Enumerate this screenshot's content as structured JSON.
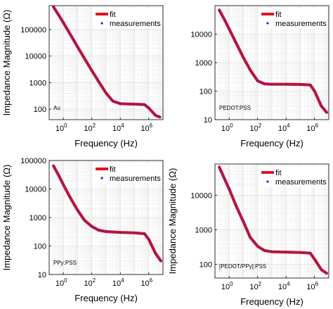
{
  "chart_data": [
    {
      "type": "line",
      "annotation": "Au",
      "xlabel": "Frequency (Hz)",
      "ylabel": "Impedance Magnitude (Ω)",
      "xscale": "log",
      "yscale": "log",
      "xlim": [
        0.1,
        10000000
      ],
      "ylim": [
        40,
        800000
      ],
      "xticks": [
        {
          "value": 1,
          "label": "10",
          "exp": "0"
        },
        {
          "value": 100,
          "label": "10",
          "exp": "2"
        },
        {
          "value": 10000,
          "label": "10",
          "exp": "4"
        },
        {
          "value": 1000000,
          "label": "10",
          "exp": "6"
        }
      ],
      "yticks": [
        {
          "value": 100,
          "label": "100"
        },
        {
          "value": 1000,
          "label": "1000"
        },
        {
          "value": 10000,
          "label": "10000"
        },
        {
          "value": 100000,
          "label": "100000"
        }
      ],
      "grid": true,
      "legend_position": "top-right",
      "series": [
        {
          "name": "fit",
          "color": "#e0141e",
          "style": "thick-line",
          "x": [
            0.2,
            0.5,
            1,
            5,
            10,
            50,
            100,
            300,
            1000,
            3000,
            10000,
            50000,
            200000,
            500000,
            1000000,
            3000000,
            6000000
          ],
          "y": [
            720000,
            330000,
            180000,
            42000,
            22000,
            5200,
            2800,
            1100,
            400,
            200,
            160,
            155,
            152,
            148,
            110,
            58,
            50
          ]
        },
        {
          "name": "measurements",
          "color": "#1a2ad1",
          "style": "dots",
          "x": [
            0.2,
            0.5,
            1,
            5,
            10,
            50,
            100,
            300,
            1000,
            3000,
            10000,
            50000,
            200000,
            500000,
            1000000,
            3000000,
            6000000
          ],
          "y": [
            720000,
            330000,
            180000,
            42000,
            22000,
            5200,
            2800,
            1100,
            400,
            200,
            160,
            155,
            152,
            148,
            110,
            58,
            50
          ]
        }
      ]
    },
    {
      "type": "line",
      "annotation": "PEDOT:PSS",
      "xlabel": "Frequency (Hz)",
      "ylabel": "",
      "xscale": "log",
      "yscale": "log",
      "xlim": [
        0.1,
        10000000
      ],
      "ylim": [
        10,
        100000
      ],
      "xticks": [
        {
          "value": 1,
          "label": "10",
          "exp": "0"
        },
        {
          "value": 100,
          "label": "10",
          "exp": "2"
        },
        {
          "value": 10000,
          "label": "10",
          "exp": "4"
        },
        {
          "value": 1000000,
          "label": "10",
          "exp": "6"
        }
      ],
      "yticks": [
        {
          "value": 10,
          "label": "10"
        },
        {
          "value": 100,
          "label": "100"
        },
        {
          "value": 1000,
          "label": "1000"
        },
        {
          "value": 10000,
          "label": "10000"
        }
      ],
      "grid": true,
      "legend_position": "top-right",
      "series": [
        {
          "name": "fit",
          "color": "#e0141e",
          "style": "thick-line",
          "x": [
            0.2,
            0.5,
            1,
            3,
            10,
            30,
            100,
            300,
            1000,
            10000,
            100000,
            500000,
            1000000,
            3000000,
            7000000
          ],
          "y": [
            70000,
            30000,
            15000,
            5000,
            1500,
            550,
            230,
            180,
            175,
            175,
            172,
            165,
            100,
            30,
            18
          ]
        },
        {
          "name": "measurements",
          "color": "#1a2ad1",
          "style": "dots",
          "x": [
            0.2,
            0.5,
            1,
            3,
            10,
            30,
            100,
            300,
            1000,
            10000,
            100000,
            500000,
            1000000,
            3000000,
            7000000
          ],
          "y": [
            70000,
            30000,
            15000,
            5000,
            1500,
            550,
            230,
            180,
            175,
            175,
            172,
            165,
            100,
            30,
            18
          ]
        }
      ]
    },
    {
      "type": "line",
      "annotation": "PPy:PSS",
      "xlabel": "Frequency (Hz)",
      "ylabel": "Impedance Magnitude (Ω)",
      "xscale": "log",
      "yscale": "log",
      "xlim": [
        0.1,
        10000000
      ],
      "ylim": [
        10,
        100000
      ],
      "xticks": [
        {
          "value": 1,
          "label": "10",
          "exp": "0"
        },
        {
          "value": 100,
          "label": "10",
          "exp": "2"
        },
        {
          "value": 10000,
          "label": "10",
          "exp": "4"
        },
        {
          "value": 1000000,
          "label": "10",
          "exp": "6"
        }
      ],
      "yticks": [
        {
          "value": 10,
          "label": "10"
        },
        {
          "value": 100,
          "label": "100"
        },
        {
          "value": 1000,
          "label": "1000"
        },
        {
          "value": 10000,
          "label": "10000"
        },
        {
          "value": 100000,
          "label": "100000"
        }
      ],
      "grid": true,
      "legend_position": "top-right",
      "series": [
        {
          "name": "fit",
          "color": "#e0141e",
          "style": "thick-line",
          "x": [
            0.2,
            0.5,
            1,
            3,
            10,
            30,
            100,
            300,
            1000,
            10000,
            100000,
            500000,
            1000000,
            3000000,
            7000000
          ],
          "y": [
            65000,
            28000,
            14000,
            5000,
            1800,
            800,
            480,
            360,
            320,
            300,
            290,
            270,
            170,
            55,
            30
          ]
        },
        {
          "name": "measurements",
          "color": "#1a2ad1",
          "style": "dots",
          "x": [
            0.2,
            0.5,
            1,
            3,
            10,
            30,
            100,
            300,
            1000,
            10000,
            100000,
            500000,
            1000000,
            3000000,
            7000000
          ],
          "y": [
            65000,
            28000,
            14000,
            5000,
            1800,
            800,
            480,
            360,
            320,
            300,
            290,
            270,
            170,
            55,
            30
          ]
        }
      ]
    },
    {
      "type": "line",
      "annotation": "[PEDOT/PPy]:PSS",
      "xlabel": "Frequency (Hz)",
      "ylabel": "Impedance Magnitude (Ω)",
      "xscale": "log",
      "yscale": "log",
      "xlim": [
        0.1,
        10000000
      ],
      "ylim": [
        40,
        80000
      ],
      "xticks": [
        {
          "value": 1,
          "label": "10",
          "exp": "0"
        },
        {
          "value": 100,
          "label": "10",
          "exp": "2"
        },
        {
          "value": 10000,
          "label": "10",
          "exp": "4"
        },
        {
          "value": 1000000,
          "label": "10",
          "exp": "6"
        }
      ],
      "yticks": [
        {
          "value": 100,
          "label": "100"
        },
        {
          "value": 1000,
          "label": "1000"
        },
        {
          "value": 10000,
          "label": "10000"
        }
      ],
      "grid": true,
      "legend_position": "top-right",
      "series": [
        {
          "name": "fit",
          "color": "#e0141e",
          "style": "thick-line",
          "x": [
            0.2,
            0.5,
            1,
            3,
            10,
            30,
            100,
            300,
            1000,
            10000,
            100000,
            500000,
            1000000,
            3000000,
            7000000
          ],
          "y": [
            65000,
            28000,
            15000,
            5000,
            1700,
            600,
            330,
            250,
            230,
            225,
            220,
            210,
            140,
            70,
            55
          ]
        },
        {
          "name": "measurements",
          "color": "#1a2ad1",
          "style": "dots",
          "x": [
            0.2,
            0.5,
            1,
            3,
            10,
            30,
            100,
            300,
            1000,
            10000,
            100000,
            500000,
            1000000,
            3000000,
            7000000
          ],
          "y": [
            65000,
            28000,
            15000,
            5000,
            1700,
            600,
            330,
            250,
            230,
            225,
            220,
            210,
            140,
            70,
            55
          ]
        }
      ]
    }
  ]
}
